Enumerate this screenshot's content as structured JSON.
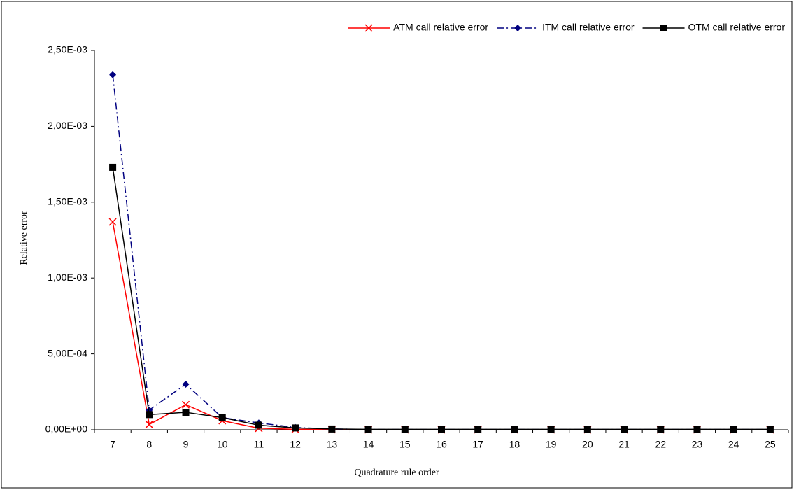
{
  "chart_data": {
    "type": "line",
    "x_label": "Quadrature rule order",
    "y_label": "Relative error",
    "categories": [
      7,
      8,
      9,
      10,
      11,
      12,
      13,
      14,
      15,
      16,
      17,
      18,
      19,
      20,
      21,
      22,
      23,
      24,
      25
    ],
    "series": [
      {
        "name": "ATM call relative error",
        "color": "#ff0000",
        "marker": "x",
        "line_style": "solid",
        "values": [
          0.00137,
          3.5e-05,
          0.000165,
          6e-05,
          1e-05,
          3e-06,
          1e-06,
          0,
          0,
          0,
          0,
          0,
          0,
          0,
          0,
          0,
          0,
          0,
          0
        ]
      },
      {
        "name": "ITM call relative error",
        "color": "#000080",
        "marker": "diamond",
        "line_style": "dashdot",
        "values": [
          0.00234,
          0.00013,
          0.0003,
          8e-05,
          4.5e-05,
          1.5e-05,
          5e-06,
          2e-06,
          2e-06,
          2e-06,
          2e-06,
          2e-06,
          2e-06,
          2e-06,
          2e-06,
          2e-06,
          2e-06,
          2e-06,
          2e-06
        ]
      },
      {
        "name": "OTM call relative error",
        "color": "#000000",
        "marker": "square",
        "line_style": "solid",
        "values": [
          0.00173,
          0.0001,
          0.000115,
          8e-05,
          3e-05,
          1.2e-05,
          5e-06,
          3e-06,
          3e-06,
          3e-06,
          3e-06,
          3e-06,
          3e-06,
          3e-06,
          3e-06,
          3e-06,
          3e-06,
          3e-06,
          3e-06
        ]
      }
    ],
    "ylim": [
      0,
      0.0025
    ],
    "yticks": [
      {
        "value": 0,
        "label": "0,00E+00"
      },
      {
        "value": 0.0005,
        "label": "5,00E-04"
      },
      {
        "value": 0.001,
        "label": "1,00E-03"
      },
      {
        "value": 0.0015,
        "label": "1,50E-03"
      },
      {
        "value": 0.002,
        "label": "2,00E-03"
      },
      {
        "value": 0.0025,
        "label": "2,50E-03"
      }
    ],
    "grid": false,
    "legend": "top-right"
  }
}
